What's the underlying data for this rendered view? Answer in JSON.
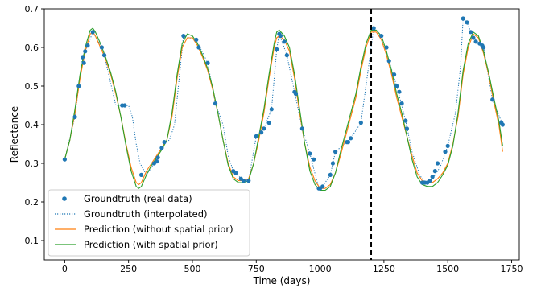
{
  "chart_data": {
    "type": "line",
    "xlabel": "Time (days)",
    "ylabel": "Reflectance",
    "xlim": [
      -80,
      1780
    ],
    "ylim": [
      0.05,
      0.7
    ],
    "xticks": [
      0,
      250,
      500,
      750,
      1000,
      1250,
      1500,
      1750
    ],
    "yticks": [
      0.1,
      0.2,
      0.3,
      0.4,
      0.5,
      0.6,
      0.7
    ],
    "xtick_labels": [
      "0",
      "250",
      "500",
      "750",
      "1000",
      "1250",
      "1500",
      "1750"
    ],
    "ytick_labels": [
      "0.1",
      "0.2",
      "0.3",
      "0.4",
      "0.5",
      "0.6",
      "0.7"
    ],
    "vline": {
      "x": 1200,
      "style": "dashed",
      "color": "#000000"
    },
    "legend_position": "lower-left",
    "grid": false,
    "series": [
      {
        "name": "Groundtruth (real data)",
        "style": "scatter",
        "color": "#1f77b4",
        "x": [
          0,
          40,
          55,
          70,
          75,
          80,
          90,
          110,
          145,
          155,
          225,
          235,
          300,
          350,
          360,
          365,
          380,
          390,
          465,
          515,
          525,
          560,
          590,
          660,
          670,
          690,
          700,
          720,
          750,
          770,
          780,
          800,
          810,
          830,
          840,
          845,
          860,
          870,
          900,
          905,
          930,
          960,
          975,
          995,
          1000,
          1010,
          1040,
          1050,
          1060,
          1105,
          1110,
          1120,
          1160,
          1210,
          1240,
          1260,
          1270,
          1290,
          1300,
          1310,
          1320,
          1335,
          1340,
          1400,
          1410,
          1420,
          1430,
          1440,
          1450,
          1460,
          1490,
          1500,
          1560,
          1575,
          1590,
          1600,
          1610,
          1625,
          1635,
          1640,
          1675,
          1710,
          1715
        ],
        "y": [
          0.31,
          0.42,
          0.5,
          0.575,
          0.56,
          0.59,
          0.605,
          0.64,
          0.6,
          0.58,
          0.45,
          0.45,
          0.27,
          0.3,
          0.305,
          0.315,
          0.34,
          0.355,
          0.63,
          0.62,
          0.6,
          0.56,
          0.455,
          0.28,
          0.275,
          0.26,
          0.255,
          0.255,
          0.37,
          0.38,
          0.39,
          0.405,
          0.44,
          0.595,
          0.635,
          0.63,
          0.615,
          0.58,
          0.485,
          0.48,
          0.39,
          0.325,
          0.31,
          0.235,
          0.235,
          0.24,
          0.27,
          0.3,
          0.33,
          0.355,
          0.355,
          0.365,
          0.405,
          0.65,
          0.63,
          0.6,
          0.565,
          0.53,
          0.5,
          0.485,
          0.455,
          0.41,
          0.39,
          0.25,
          0.25,
          0.25,
          0.255,
          0.265,
          0.28,
          0.3,
          0.33,
          0.345,
          0.675,
          0.665,
          0.64,
          0.625,
          0.615,
          0.61,
          0.605,
          0.6,
          0.465,
          0.405,
          0.4
        ]
      },
      {
        "name": "Groundtruth (interpolated)",
        "style": "dotted",
        "color": "#1f77b4",
        "x": [
          0,
          40,
          55,
          70,
          80,
          90,
          110,
          145,
          155,
          200,
          210,
          225,
          235,
          250,
          265,
          280,
          295,
          320,
          350,
          380,
          390,
          410,
          430,
          465,
          515,
          560,
          590,
          620,
          640,
          660,
          700,
          720,
          750,
          780,
          810,
          830,
          840,
          870,
          900,
          930,
          960,
          995,
          1010,
          1040,
          1060,
          1105,
          1120,
          1160,
          1200,
          1210,
          1240,
          1270,
          1300,
          1335,
          1360,
          1390,
          1410,
          1440,
          1470,
          1500,
          1530,
          1550,
          1560,
          1575,
          1600,
          1640,
          1675,
          1715
        ],
        "y": [
          0.31,
          0.42,
          0.5,
          0.575,
          0.59,
          0.605,
          0.64,
          0.6,
          0.58,
          0.45,
          0.45,
          0.45,
          0.45,
          0.45,
          0.42,
          0.35,
          0.3,
          0.27,
          0.3,
          0.34,
          0.355,
          0.36,
          0.4,
          0.63,
          0.62,
          0.56,
          0.455,
          0.4,
          0.32,
          0.28,
          0.255,
          0.255,
          0.37,
          0.39,
          0.44,
          0.595,
          0.635,
          0.58,
          0.485,
          0.39,
          0.325,
          0.235,
          0.24,
          0.27,
          0.33,
          0.355,
          0.365,
          0.405,
          0.6,
          0.65,
          0.63,
          0.565,
          0.5,
          0.41,
          0.33,
          0.27,
          0.25,
          0.26,
          0.29,
          0.345,
          0.43,
          0.55,
          0.675,
          0.665,
          0.625,
          0.6,
          0.465,
          0.4
        ]
      },
      {
        "name": "Prediction (without spatial prior)",
        "style": "line",
        "color": "#ff7f0e",
        "x": [
          0,
          20,
          40,
          60,
          80,
          100,
          110,
          120,
          140,
          160,
          180,
          200,
          220,
          240,
          260,
          280,
          290,
          300,
          320,
          340,
          360,
          380,
          400,
          420,
          440,
          460,
          480,
          500,
          520,
          540,
          560,
          580,
          600,
          620,
          640,
          660,
          680,
          700,
          720,
          740,
          760,
          780,
          800,
          820,
          830,
          840,
          860,
          880,
          900,
          920,
          940,
          960,
          980,
          1000,
          1020,
          1040,
          1060,
          1080,
          1100,
          1120,
          1140,
          1160,
          1180,
          1200,
          1220,
          1240,
          1260,
          1280,
          1300,
          1320,
          1340,
          1360,
          1380,
          1400,
          1420,
          1440,
          1460,
          1480,
          1500,
          1520,
          1540,
          1560,
          1580,
          1600,
          1620,
          1640,
          1660,
          1680,
          1700,
          1715
        ],
        "y": [
          0.31,
          0.36,
          0.43,
          0.52,
          0.59,
          0.635,
          0.64,
          0.63,
          0.6,
          0.57,
          0.53,
          0.48,
          0.42,
          0.35,
          0.29,
          0.25,
          0.245,
          0.25,
          0.28,
          0.3,
          0.32,
          0.34,
          0.36,
          0.42,
          0.52,
          0.6,
          0.625,
          0.625,
          0.605,
          0.575,
          0.54,
          0.49,
          0.43,
          0.36,
          0.3,
          0.265,
          0.255,
          0.255,
          0.26,
          0.3,
          0.36,
          0.43,
          0.52,
          0.6,
          0.625,
          0.63,
          0.62,
          0.59,
          0.52,
          0.43,
          0.35,
          0.29,
          0.255,
          0.235,
          0.235,
          0.245,
          0.275,
          0.32,
          0.37,
          0.42,
          0.47,
          0.54,
          0.6,
          0.64,
          0.64,
          0.62,
          0.58,
          0.53,
          0.47,
          0.42,
          0.37,
          0.32,
          0.275,
          0.255,
          0.25,
          0.25,
          0.26,
          0.275,
          0.3,
          0.35,
          0.42,
          0.53,
          0.6,
          0.635,
          0.625,
          0.585,
          0.53,
          0.46,
          0.4,
          0.33
        ]
      },
      {
        "name": "Prediction (with spatial prior)",
        "style": "line",
        "color": "#2ca02c",
        "x": [
          0,
          20,
          40,
          60,
          80,
          100,
          110,
          120,
          140,
          160,
          180,
          200,
          220,
          240,
          260,
          280,
          290,
          300,
          320,
          340,
          360,
          380,
          400,
          420,
          440,
          460,
          480,
          500,
          520,
          540,
          560,
          580,
          600,
          620,
          640,
          660,
          680,
          700,
          720,
          740,
          760,
          780,
          800,
          820,
          830,
          840,
          860,
          880,
          900,
          920,
          940,
          960,
          980,
          1000,
          1020,
          1040,
          1060,
          1080,
          1100,
          1120,
          1140,
          1160,
          1180,
          1200,
          1220,
          1240,
          1260,
          1280,
          1300,
          1320,
          1340,
          1360,
          1380,
          1400,
          1420,
          1440,
          1460,
          1480,
          1500,
          1520,
          1540,
          1560,
          1580,
          1600,
          1620,
          1640,
          1660,
          1680,
          1700,
          1715
        ],
        "y": [
          0.31,
          0.36,
          0.44,
          0.53,
          0.6,
          0.645,
          0.65,
          0.64,
          0.61,
          0.575,
          0.535,
          0.485,
          0.42,
          0.345,
          0.28,
          0.24,
          0.235,
          0.24,
          0.27,
          0.295,
          0.315,
          0.335,
          0.36,
          0.43,
          0.53,
          0.61,
          0.635,
          0.63,
          0.61,
          0.58,
          0.545,
          0.495,
          0.43,
          0.36,
          0.295,
          0.26,
          0.25,
          0.25,
          0.255,
          0.3,
          0.37,
          0.44,
          0.53,
          0.61,
          0.64,
          0.645,
          0.63,
          0.6,
          0.53,
          0.44,
          0.35,
          0.28,
          0.245,
          0.23,
          0.23,
          0.24,
          0.275,
          0.33,
          0.38,
          0.43,
          0.48,
          0.55,
          0.61,
          0.645,
          0.645,
          0.63,
          0.59,
          0.54,
          0.48,
          0.43,
          0.37,
          0.31,
          0.265,
          0.245,
          0.24,
          0.24,
          0.25,
          0.27,
          0.295,
          0.345,
          0.43,
          0.54,
          0.61,
          0.64,
          0.63,
          0.59,
          0.535,
          0.47,
          0.41,
          0.345
        ]
      }
    ]
  }
}
